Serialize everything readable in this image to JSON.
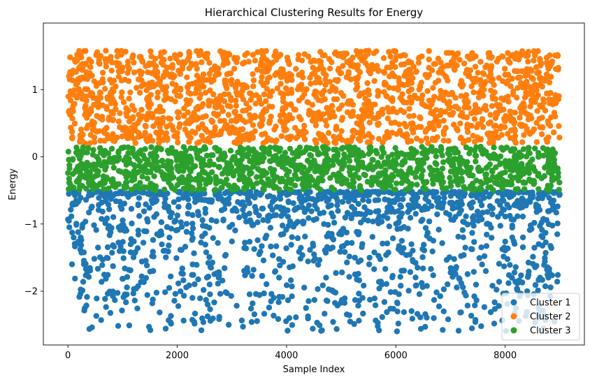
{
  "chart_data": {
    "type": "scatter",
    "title": "Hierarchical Clustering Results for Energy",
    "xlabel": "Sample Index",
    "ylabel": "Energy",
    "xlim": [
      -450,
      9450
    ],
    "ylim": [
      -2.8,
      1.99
    ],
    "xticks": [
      0,
      2000,
      4000,
      6000,
      8000
    ],
    "xtick_labels": [
      "0",
      "2000",
      "4000",
      "6000",
      "8000"
    ],
    "yticks": [
      -2,
      -1,
      0,
      1
    ],
    "ytick_labels": [
      "−2",
      "−1",
      "0",
      "1"
    ],
    "grid": false,
    "legend_position": "lower-right",
    "series": [
      {
        "name": "Cluster 1",
        "color": "#1f77b4",
        "x_range": [
          0,
          9000
        ],
        "y_range": [
          -2.6,
          -0.52
        ],
        "n": 1400,
        "distribution": "dense near top, sparse toward bottom"
      },
      {
        "name": "Cluster 2",
        "color": "#ff7f0e",
        "x_range": [
          0,
          9000
        ],
        "y_range": [
          0.2,
          1.58
        ],
        "n": 1700,
        "distribution": "uniform"
      },
      {
        "name": "Cluster 3",
        "color": "#2ca02c",
        "x_range": [
          0,
          9000
        ],
        "y_range": [
          -0.5,
          0.15
        ],
        "n": 1200,
        "distribution": "uniform"
      }
    ]
  }
}
